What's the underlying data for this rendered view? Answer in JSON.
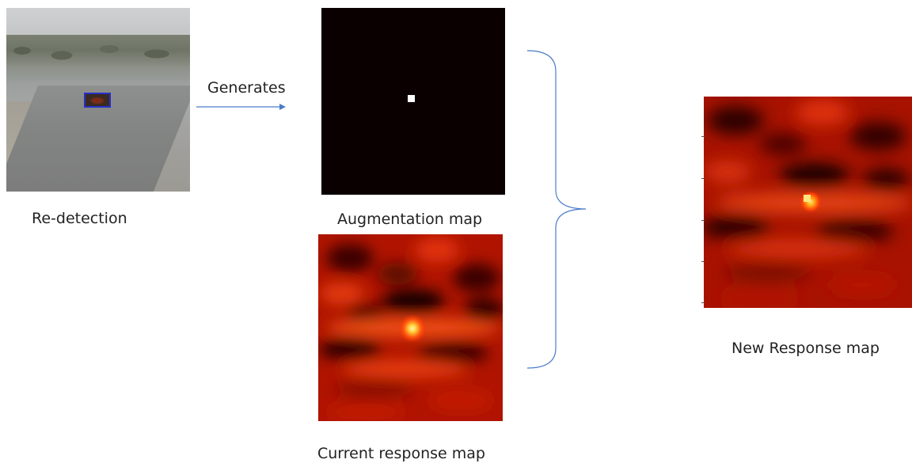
{
  "labels": {
    "redetection": "Re-detection",
    "generates": "Generates",
    "augmentation_map": "Augmentation map",
    "current_response_map": "Current response map",
    "new_response_map": "New Response map"
  },
  "colors": {
    "arrow": "#4a7cc9",
    "brace": "#4a7cc9",
    "bounding_box": "#2530c8",
    "augmentation_background": "#0b0000",
    "augmentation_peak": "#ffffff",
    "heatmap_base": "#b31400",
    "heatmap_peak": "#fff3a0"
  },
  "icons": {
    "arrow": "right-arrow",
    "brace": "right-curly-brace"
  }
}
